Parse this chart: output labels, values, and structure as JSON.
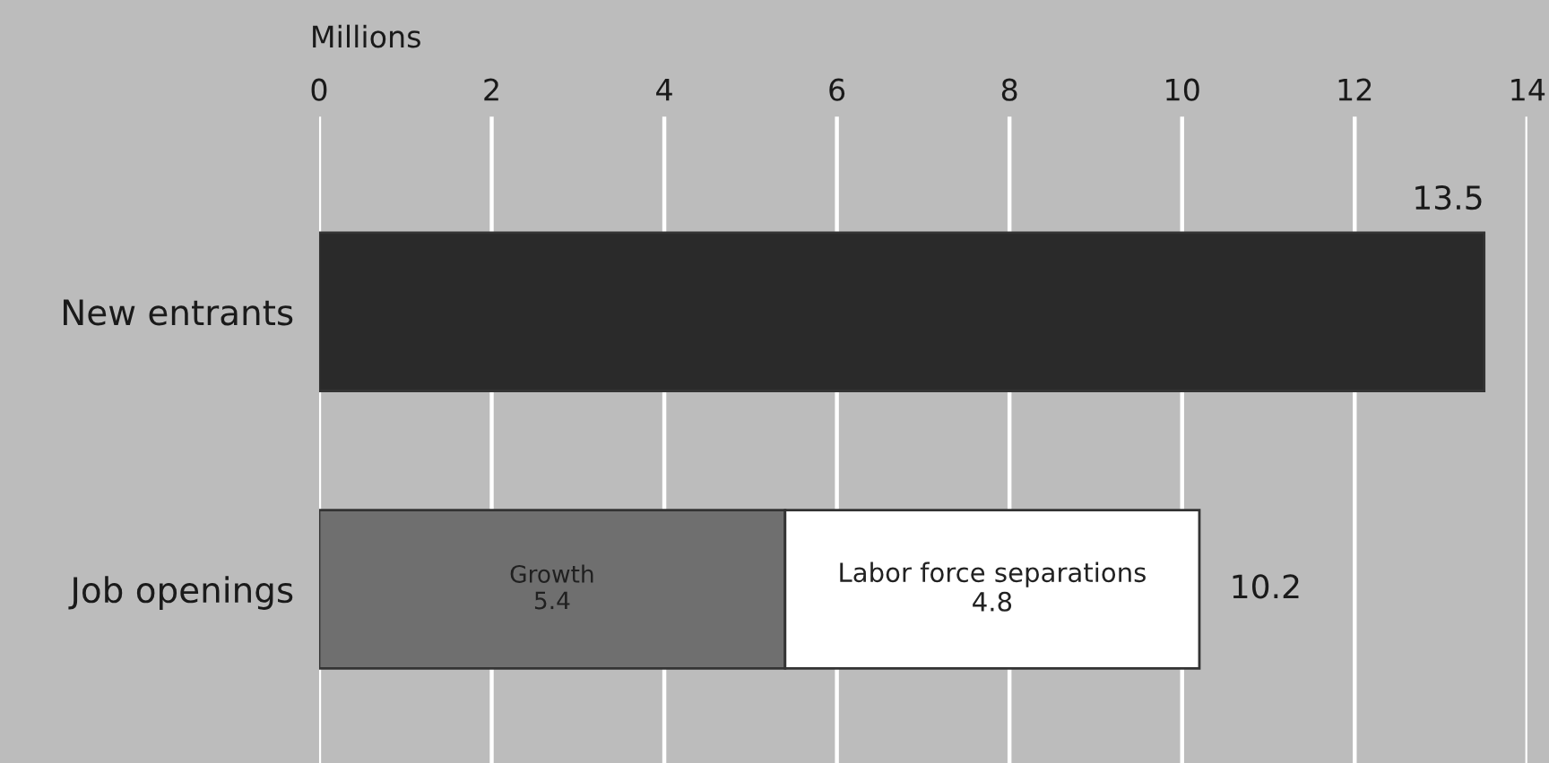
{
  "chart_data": {
    "type": "bar",
    "orientation": "horizontal",
    "stacked": true,
    "xlabel": "Millions",
    "categories": [
      "New entrants",
      "Job openings"
    ],
    "series": [
      {
        "color": "#2a2a2a",
        "values": [
          13.5,
          null
        ]
      },
      {
        "name": "Growth",
        "color": "#6f6f6f",
        "values": [
          null,
          5.4
        ],
        "value_labels": [
          null,
          "5.4"
        ]
      },
      {
        "name": "Labor force separations",
        "color": "#ffffff",
        "values": [
          null,
          4.8
        ],
        "value_labels": [
          null,
          "4.8"
        ]
      }
    ],
    "totals": [
      "13.5",
      "10.2"
    ],
    "xlim": [
      0,
      14
    ],
    "xticks": [
      0,
      2,
      4,
      6,
      8,
      10,
      12,
      14
    ],
    "grid": "x",
    "legend": false
  }
}
